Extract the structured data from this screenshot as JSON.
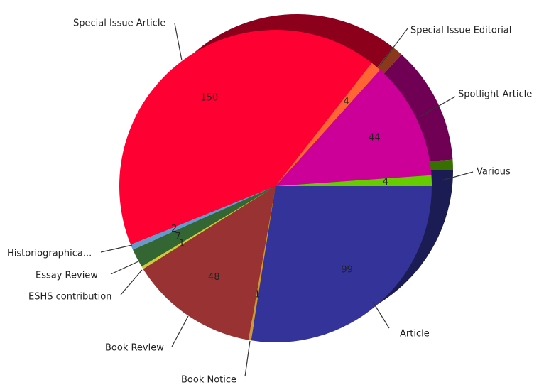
{
  "chart_data": {
    "type": "pie",
    "categories": [
      "Article",
      "Book Notice",
      "Book Review",
      "ESHS contribution",
      "Essay Review",
      "Historiographica...",
      "Special Issue Article",
      "Special Issue Editorial",
      "Spotlight Article",
      "Various"
    ],
    "values": [
      99,
      1,
      48,
      1,
      7,
      2,
      150,
      4,
      44,
      4
    ],
    "colors": [
      "#333399",
      "#cc9933",
      "#993333",
      "#cccc33",
      "#336633",
      "#6699cc",
      "#ff0033",
      "#ff6633",
      "#cc0099",
      "#66cc00"
    ]
  }
}
